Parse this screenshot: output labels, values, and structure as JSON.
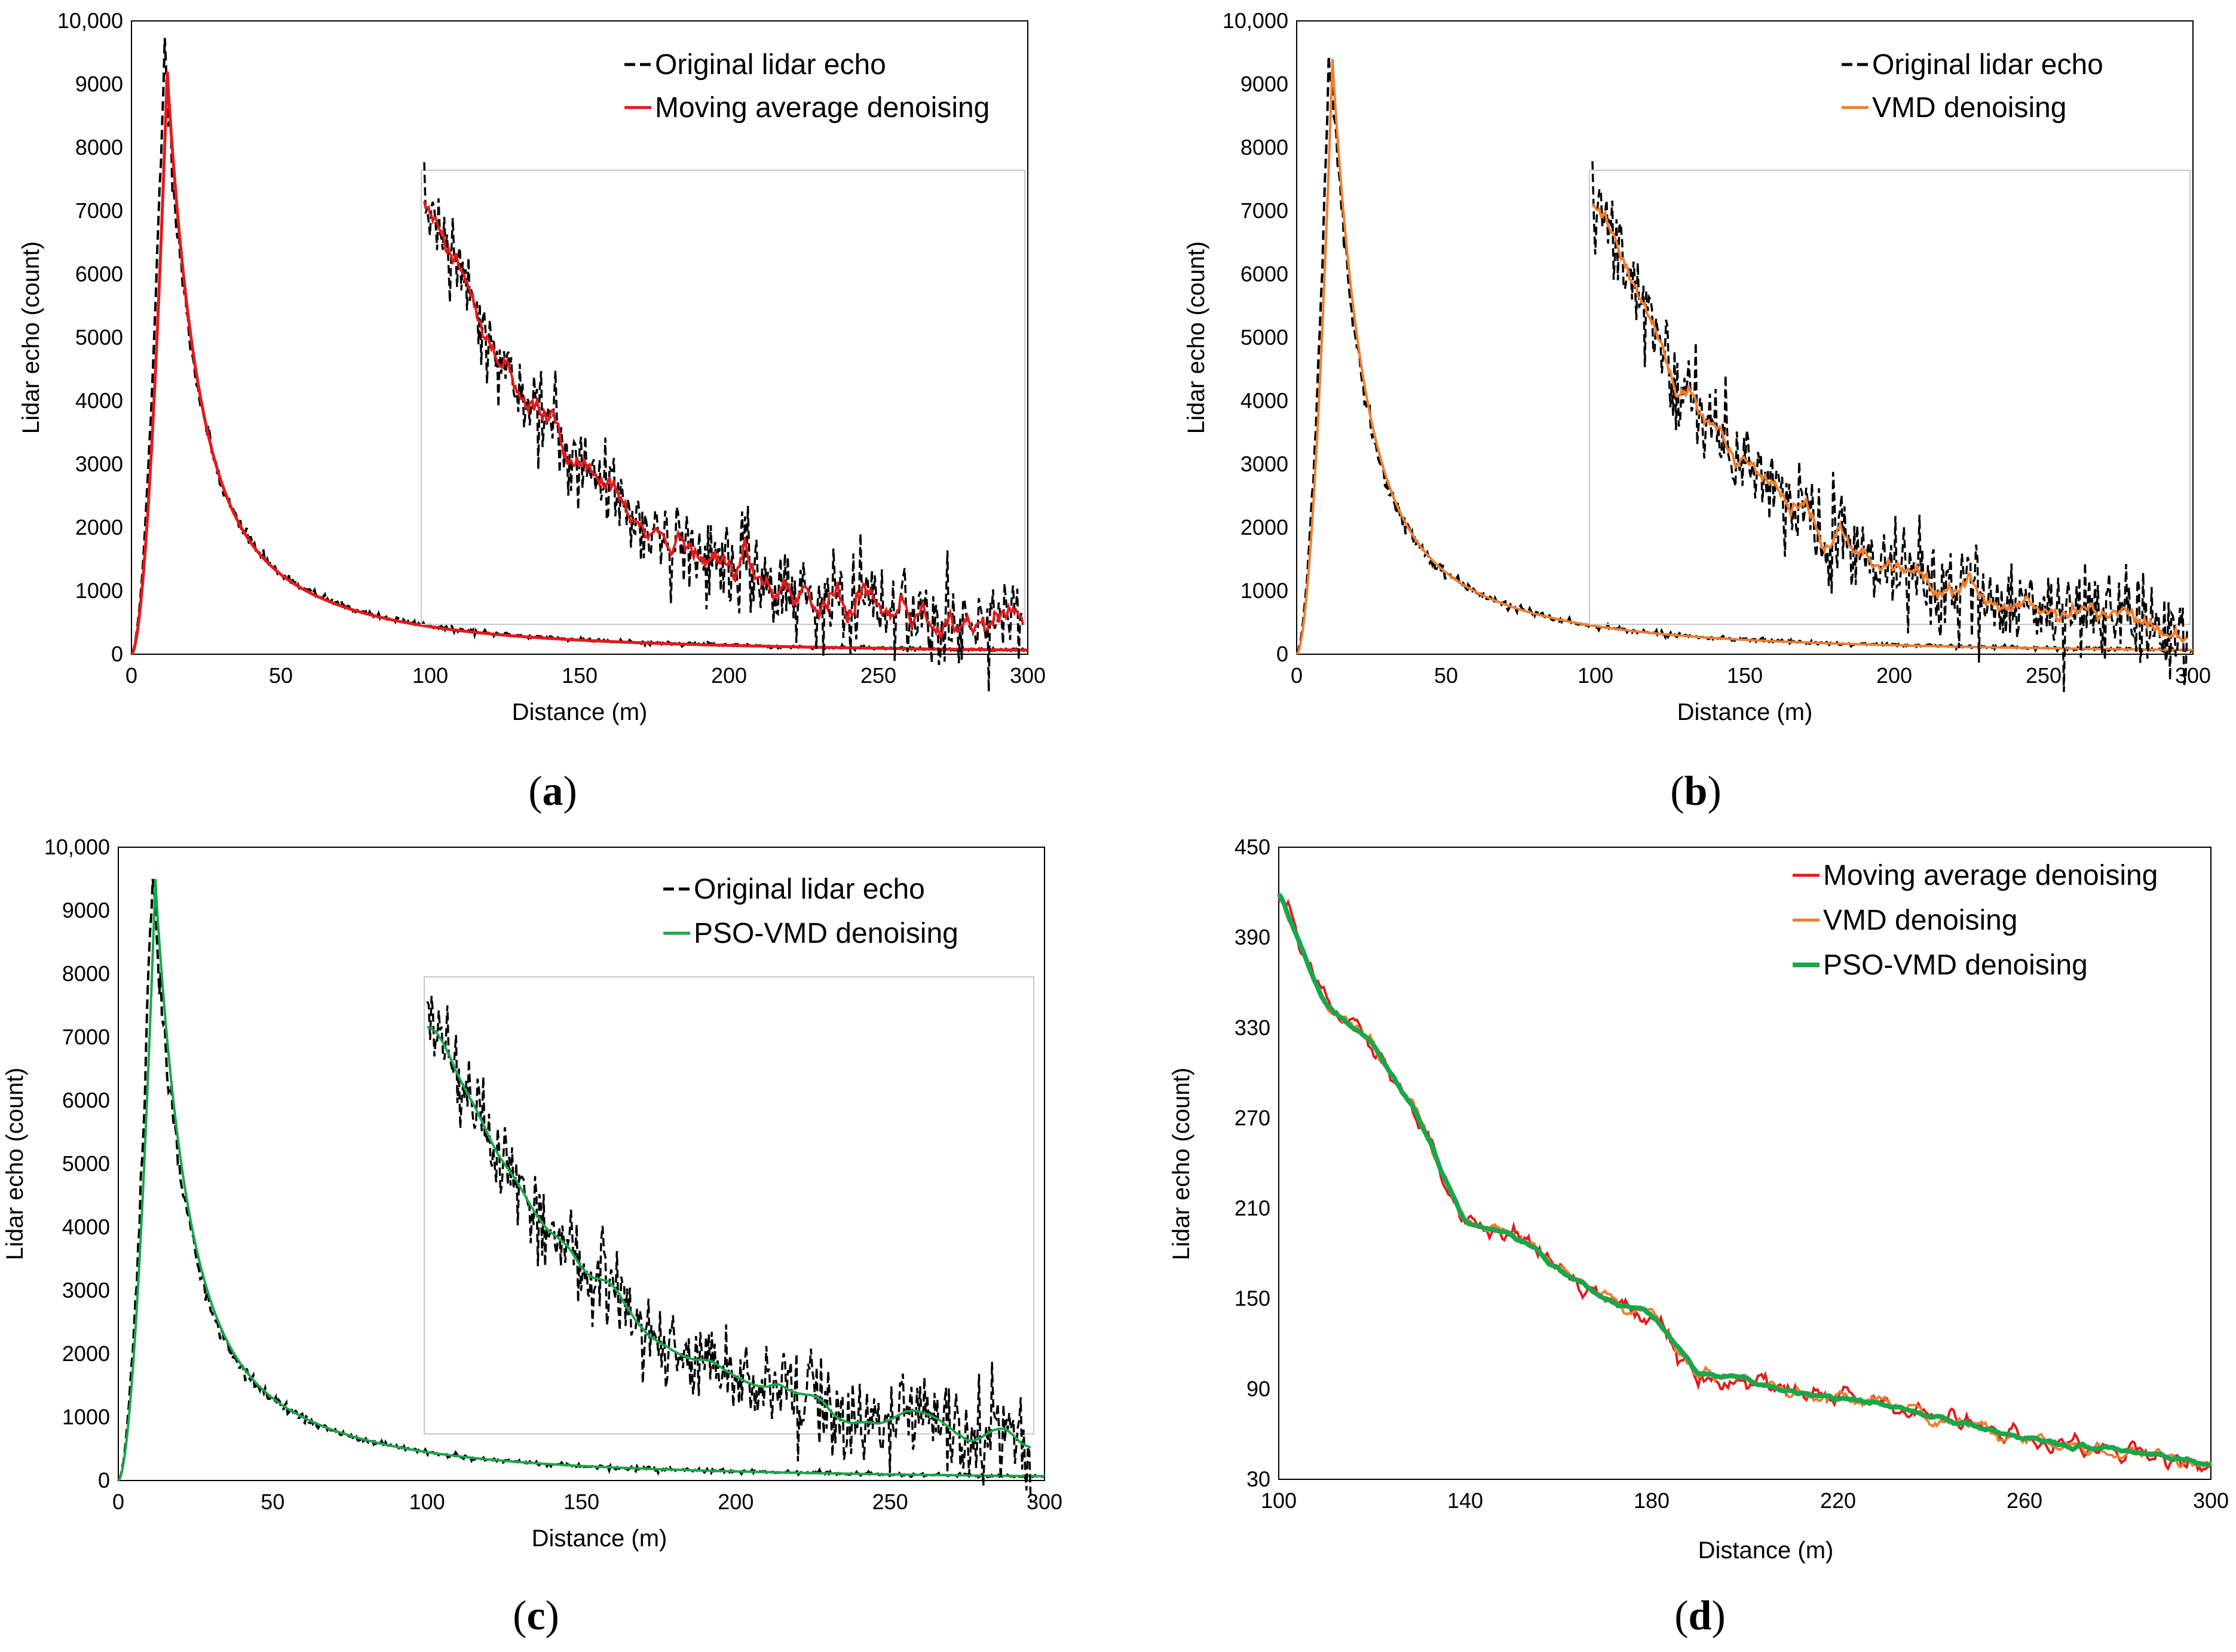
{
  "figure": {
    "colors": {
      "original": "#000000",
      "moving_average": "#e31a1c",
      "vmd": "#f07d2e",
      "pso_vmd": "#1aa64a",
      "frame": "#000000",
      "inset_frame": "#c8c8c8"
    }
  },
  "chart_data": [
    {
      "id": "a",
      "type": "line",
      "caption": "a",
      "xlabel": "Distance (m)",
      "ylabel": "Lidar echo  (count)",
      "xlim": [
        0,
        300
      ],
      "ylim": [
        0,
        10000
      ],
      "xticks": [
        "0",
        "50",
        "100",
        "150",
        "200",
        "250",
        "300"
      ],
      "yticks": [
        "0",
        "1000",
        "2000",
        "3000",
        "4000",
        "5000",
        "6000",
        "7000",
        "8000",
        "9000",
        "10,000"
      ],
      "series": [
        {
          "name": "Original lidar echo",
          "style": "dashed",
          "color_key": "original",
          "peak_x": 11,
          "peak_y": 9650,
          "seed": 11
        },
        {
          "name": "Moving average denoising",
          "style": "solid",
          "color_key": "moving_average",
          "peak_x": 12,
          "peak_y": 9200
        }
      ],
      "inset": {
        "xlim": [
          100,
          300
        ],
        "series_range_y": [
          30,
          450
        ],
        "denoised_key": "moving_average"
      }
    },
    {
      "id": "b",
      "type": "line",
      "caption": "b",
      "xlabel": "Distance (m)",
      "ylabel": "Lidar echo  (count)",
      "xlim": [
        0,
        300
      ],
      "ylim": [
        0,
        10000
      ],
      "xticks": [
        "0",
        "50",
        "100",
        "150",
        "200",
        "250",
        "300"
      ],
      "yticks": [
        "0",
        "1000",
        "2000",
        "3000",
        "4000",
        "5000",
        "6000",
        "7000",
        "8000",
        "9000",
        "10,000"
      ],
      "series": [
        {
          "name": "Original lidar echo",
          "style": "dashed",
          "color_key": "original",
          "peak_x": 11,
          "peak_y": 9650,
          "seed": 22
        },
        {
          "name": "VMD denoising",
          "style": "solid",
          "color_key": "vmd",
          "peak_x": 12,
          "peak_y": 9400
        }
      ],
      "inset": {
        "xlim": [
          100,
          300
        ],
        "series_range_y": [
          30,
          450
        ],
        "denoised_key": "vmd"
      }
    },
    {
      "id": "c",
      "type": "line",
      "caption": "c",
      "xlabel": "Distance (m)",
      "ylabel": "Lidar echo  (count)",
      "xlim": [
        0,
        300
      ],
      "ylim": [
        0,
        10000
      ],
      "xticks": [
        "0",
        "50",
        "100",
        "150",
        "200",
        "250",
        "300"
      ],
      "yticks": [
        "0",
        "1000",
        "2000",
        "3000",
        "4000",
        "5000",
        "6000",
        "7000",
        "8000",
        "9000",
        "10,000"
      ],
      "series": [
        {
          "name": "Original lidar echo",
          "style": "dashed",
          "color_key": "original",
          "peak_x": 11,
          "peak_y": 9650,
          "seed": 33
        },
        {
          "name": "PSO-VMD denoising",
          "style": "solid",
          "color_key": "pso_vmd",
          "peak_x": 12,
          "peak_y": 9500
        }
      ],
      "inset": {
        "xlim": [
          100,
          300
        ],
        "series_range_y": [
          30,
          450
        ],
        "denoised_key": "pso_vmd"
      }
    },
    {
      "id": "d",
      "type": "line",
      "caption": "d",
      "xlabel": "Distance (m)",
      "ylabel": "Lidar echo  (count)",
      "xlim": [
        100,
        300
      ],
      "ylim": [
        30,
        450
      ],
      "xticks": [
        "100",
        "140",
        "180",
        "220",
        "260",
        "300"
      ],
      "yticks": [
        "30",
        "90",
        "150",
        "210",
        "270",
        "330",
        "390",
        "450"
      ],
      "series": [
        {
          "name": "Moving average denoising",
          "style": "solid",
          "color_key": "moving_average",
          "noise": 9,
          "seed": 44
        },
        {
          "name": "VMD denoising",
          "style": "solid",
          "color_key": "vmd",
          "noise": 5,
          "seed": 55
        },
        {
          "name": "PSO-VMD denoising",
          "style": "solid",
          "color_key": "pso_vmd",
          "noise": 1.5,
          "seed": 66
        }
      ],
      "shape_points": [
        [
          100,
          420
        ],
        [
          110,
          345
        ],
        [
          120,
          320
        ],
        [
          130,
          270
        ],
        [
          140,
          200
        ],
        [
          150,
          193
        ],
        [
          160,
          170
        ],
        [
          170,
          150
        ],
        [
          180,
          140
        ],
        [
          190,
          100
        ],
        [
          200,
          97
        ],
        [
          210,
          88
        ],
        [
          220,
          84
        ],
        [
          230,
          80
        ],
        [
          240,
          72
        ],
        [
          250,
          65
        ],
        [
          260,
          57
        ],
        [
          270,
          52
        ],
        [
          280,
          50
        ],
        [
          290,
          45
        ],
        [
          300,
          40
        ]
      ]
    }
  ]
}
